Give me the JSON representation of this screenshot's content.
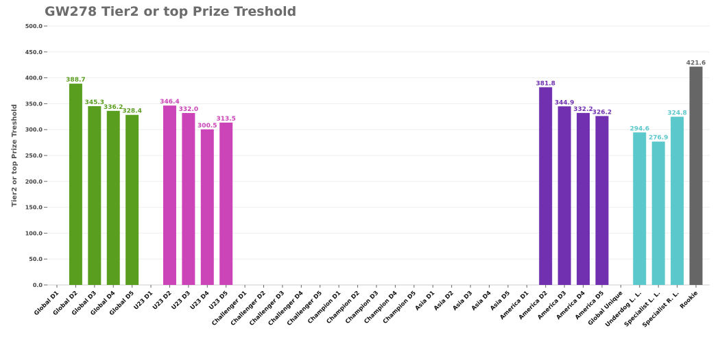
{
  "chart_data": {
    "type": "bar",
    "title": "GW278 Tier2 or top Prize Treshold",
    "ylabel": "Tier2 or top Prize Treshold",
    "xlabel": "",
    "ylim": [
      0,
      500
    ],
    "yticks": [
      0,
      50,
      100,
      150,
      200,
      250,
      300,
      350,
      400,
      450,
      500
    ],
    "grid": true,
    "categories": [
      "Global D1",
      "Global D2",
      "Global D3",
      "Global D4",
      "Global D5",
      "U23 D1",
      "U23 D2",
      "U23 D3",
      "U23 D4",
      "U23 D5",
      "Challenger D1",
      "Challenger D2",
      "Challenger D3",
      "Challenger D4",
      "Challenger D5",
      "Champion D1",
      "Champion D2",
      "Champion D3",
      "Champion D4",
      "Champion D5",
      "Asia D1",
      "Asia D2",
      "Asia D3",
      "Asia D4",
      "Asia D5",
      "America D1",
      "America D2",
      "America D3",
      "America D4",
      "America D5",
      "Global Unique",
      "Underdog L. L.",
      "Specialist L. L.",
      "Specialist R. L.",
      "Rookie"
    ],
    "values": [
      null,
      388.7,
      345.3,
      336.2,
      328.4,
      null,
      346.4,
      332.0,
      300.5,
      313.5,
      null,
      null,
      null,
      null,
      null,
      null,
      null,
      null,
      null,
      null,
      null,
      null,
      null,
      null,
      null,
      null,
      381.8,
      344.9,
      332.2,
      326.2,
      null,
      294.6,
      276.9,
      324.8,
      421.6
    ],
    "value_labels": [
      "",
      "388.7",
      "345.3",
      "336.2",
      "328.4",
      "",
      "346.4",
      "332.0",
      "300.5",
      "313.5",
      "",
      "",
      "",
      "",
      "",
      "",
      "",
      "",
      "",
      "",
      "",
      "",
      "",
      "",
      "",
      "",
      "381.8",
      "344.9",
      "332.2",
      "326.2",
      "",
      "294.6",
      "276.9",
      "324.8",
      "421.6"
    ],
    "colors": [
      "#5a9e1f",
      "#5a9e1f",
      "#5a9e1f",
      "#5a9e1f",
      "#5a9e1f",
      "#cb44b8",
      "#cb44b8",
      "#cb44b8",
      "#cb44b8",
      "#cb44b8",
      "#cb44b8",
      "#cb44b8",
      "#cb44b8",
      "#cb44b8",
      "#cb44b8",
      "#cb44b8",
      "#cb44b8",
      "#cb44b8",
      "#cb44b8",
      "#cb44b8",
      "#7030b0",
      "#7030b0",
      "#7030b0",
      "#7030b0",
      "#7030b0",
      "#7030b0",
      "#7030b0",
      "#7030b0",
      "#7030b0",
      "#7030b0",
      "#5bc8cc",
      "#5bc8cc",
      "#5bc8cc",
      "#5bc8cc",
      "#666666"
    ]
  }
}
